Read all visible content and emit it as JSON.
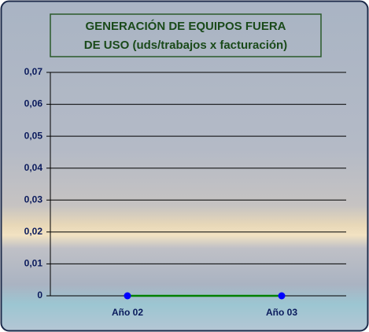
{
  "chart_data": {
    "type": "line",
    "title": [
      "GENERACIÓN DE EQUIPOS FUERA",
      "DE USO (uds/trabajos x facturación)"
    ],
    "categories": [
      "Año 02",
      "Año 03"
    ],
    "series": [
      {
        "color": "#008000",
        "marker_color": "#0000ff",
        "values": [
          0,
          0
        ]
      }
    ],
    "ylim": [
      0,
      0.07
    ],
    "yticks": [
      0,
      {
        "value": 0.01,
        "label": "0,01"
      },
      {
        "value": 0.02,
        "label": "0,02"
      },
      {
        "value": 0.03,
        "label": "0,03"
      },
      {
        "value": 0.04,
        "label": "0,04"
      },
      {
        "value": 0.05,
        "label": "0,05"
      },
      {
        "value": 0.06,
        "label": "0,06"
      },
      {
        "value": 0.07,
        "label": "0,07"
      }
    ],
    "grid": true
  }
}
